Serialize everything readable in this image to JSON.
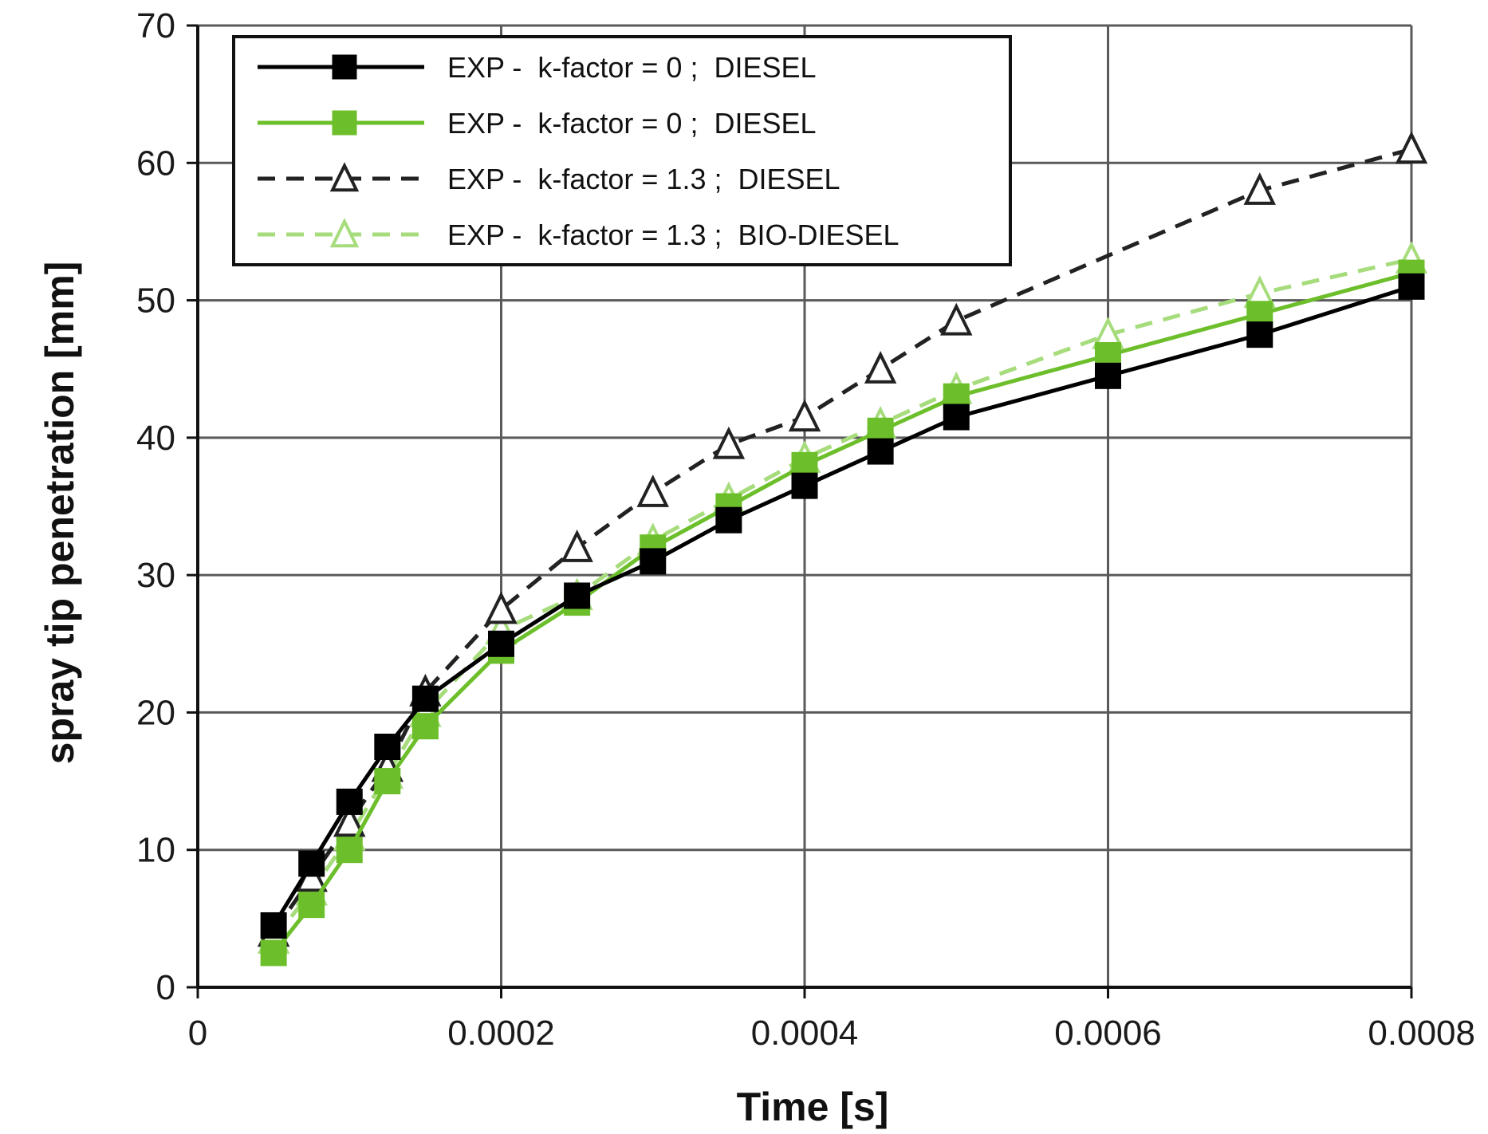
{
  "chart_data": {
    "type": "line",
    "title": "",
    "xlabel": "Time [s]",
    "ylabel": "spray tip penetration [mm]",
    "xlim": [
      0,
      0.0008
    ],
    "ylim": [
      0,
      70
    ],
    "x_ticks": [
      0,
      0.0002,
      0.0004,
      0.0006,
      0.0008
    ],
    "x_tick_labels": [
      "0",
      "0.0002",
      "0.0004",
      "0.0006",
      "0.0008"
    ],
    "y_ticks": [
      0,
      10,
      20,
      30,
      40,
      50,
      60,
      70
    ],
    "y_tick_labels": [
      "0",
      "10",
      "20",
      "30",
      "40",
      "50",
      "60",
      "70"
    ],
    "grid": true,
    "legend_position": "top-left",
    "series": [
      {
        "name": "EXP -  k-factor = 0 ;  DIESEL",
        "color": "#000000",
        "line_style": "solid",
        "marker": "square",
        "marker_fill": "filled",
        "x": [
          5e-05,
          7.5e-05,
          0.0001,
          0.000125,
          0.00015,
          0.0002,
          0.00025,
          0.0003,
          0.00035,
          0.0004,
          0.00045,
          0.0005,
          0.0006,
          0.0007,
          0.0008
        ],
        "values": [
          4.5,
          9,
          13.5,
          17.5,
          21,
          25,
          28.5,
          31,
          34,
          36.5,
          39,
          41.5,
          44.5,
          47.5,
          51
        ]
      },
      {
        "name": "EXP -  k-factor = 0 ;  DIESEL",
        "color": "#6cbf2a",
        "line_style": "solid",
        "marker": "square",
        "marker_fill": "filled",
        "x": [
          5e-05,
          7.5e-05,
          0.0001,
          0.000125,
          0.00015,
          0.0002,
          0.00025,
          0.0003,
          0.00035,
          0.0004,
          0.00045,
          0.0005,
          0.0006,
          0.0007,
          0.0008
        ],
        "values": [
          2.5,
          6,
          10,
          15,
          19,
          24.5,
          28,
          32,
          35,
          38,
          40.5,
          43,
          46,
          49,
          52
        ]
      },
      {
        "name": "EXP -  k-factor = 1.3 ;  DIESEL",
        "color": "#222222",
        "line_style": "dashed",
        "marker": "triangle",
        "marker_fill": "open",
        "x": [
          5e-05,
          7.5e-05,
          0.0001,
          0.000125,
          0.00015,
          0.0002,
          0.00025,
          0.0003,
          0.00035,
          0.0004,
          0.00045,
          0.0005,
          0.0007,
          0.0008
        ],
        "values": [
          4,
          8,
          12,
          16,
          21.5,
          27.5,
          32,
          36,
          39.5,
          41.5,
          45,
          48.5,
          58,
          61
        ]
      },
      {
        "name": "EXP -  k-factor = 1.3 ;  BIO-DIESEL",
        "color": "#a6dc7c",
        "line_style": "dashed",
        "marker": "triangle",
        "marker_fill": "open",
        "x": [
          5e-05,
          7.5e-05,
          0.0001,
          0.000125,
          0.00015,
          0.0002,
          0.00025,
          0.0003,
          0.00035,
          0.0004,
          0.00045,
          0.0005,
          0.0006,
          0.0007,
          0.0008
        ],
        "values": [
          3.5,
          7,
          11,
          15.5,
          20,
          26,
          28.5,
          32.5,
          35.5,
          38.5,
          41,
          43.5,
          47.5,
          50.5,
          53
        ]
      }
    ]
  }
}
